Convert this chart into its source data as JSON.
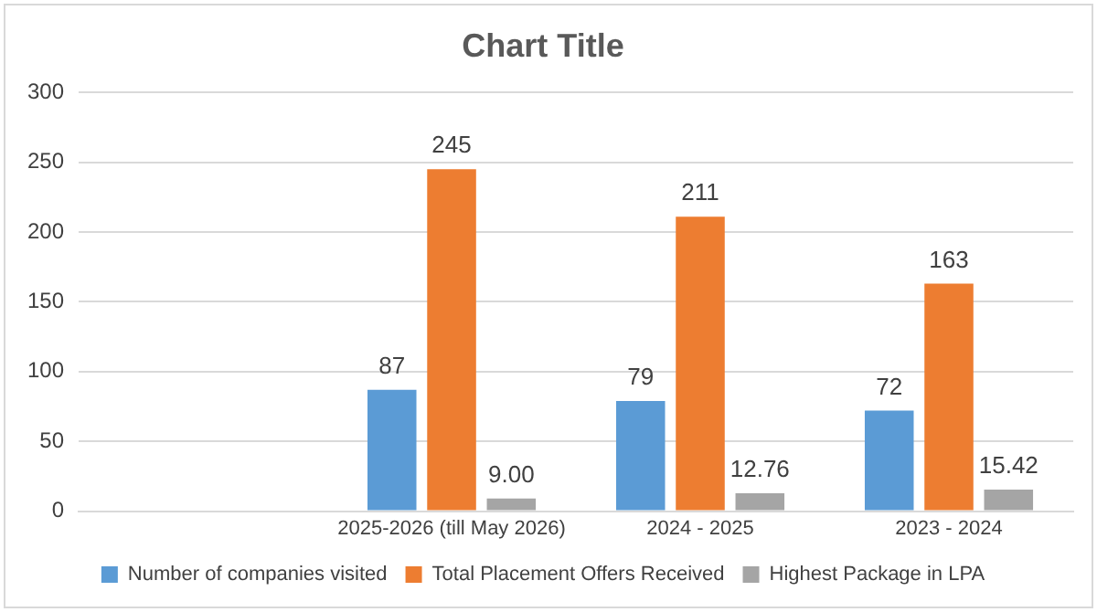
{
  "chart_data": {
    "type": "bar",
    "title": "Chart Title",
    "categories": [
      null,
      "2025-2026 (till May 2026)",
      "2024 - 2025",
      "2023 - 2024"
    ],
    "series": [
      {
        "name": "Number of companies visited",
        "color": "#5b9bd5",
        "values": [
          null,
          87,
          79,
          72
        ],
        "value_labels": [
          null,
          "87",
          "79",
          "72"
        ]
      },
      {
        "name": "Total Placement Offers Received",
        "color": "#ed7d31",
        "values": [
          null,
          245,
          211,
          163
        ],
        "value_labels": [
          null,
          "245",
          "211",
          "163"
        ]
      },
      {
        "name": "Highest Package in LPA",
        "color": "#a5a5a5",
        "values": [
          null,
          9.0,
          12.76,
          15.42
        ],
        "value_labels": [
          null,
          "9.00",
          "12.76",
          "15.42"
        ]
      }
    ],
    "ylim": [
      0,
      300
    ],
    "yticks": [
      0,
      50,
      100,
      150,
      200,
      250,
      300
    ],
    "grid": "y",
    "legend": "bottom"
  }
}
